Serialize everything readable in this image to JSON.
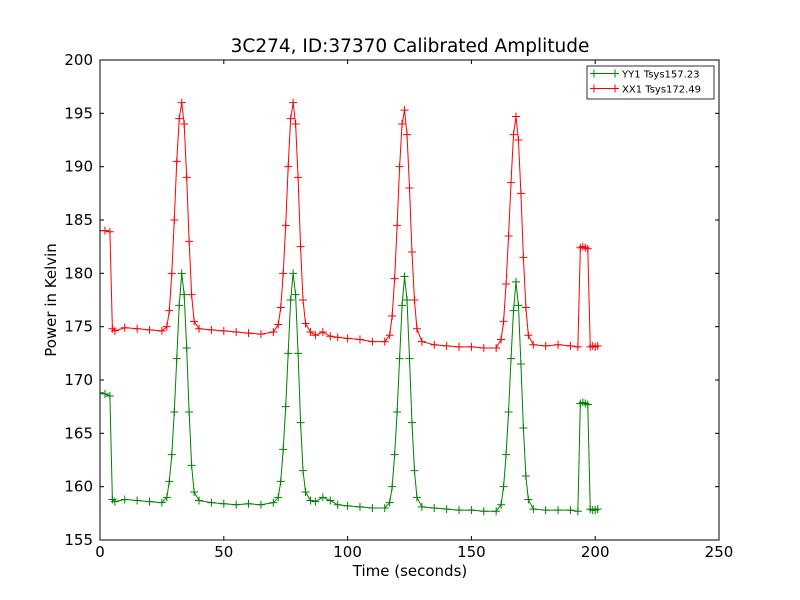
{
  "chart_data": {
    "type": "line",
    "title": "3C274, ID:37370 Calibrated Amplitude",
    "xlabel": "Time (seconds)",
    "ylabel": "Power in Kelvin",
    "xlim": [
      0,
      250
    ],
    "ylim": [
      155,
      200
    ],
    "xticks": [
      0,
      50,
      100,
      150,
      200,
      250
    ],
    "yticks": [
      155,
      160,
      165,
      170,
      175,
      180,
      185,
      190,
      195,
      200
    ],
    "grid": false,
    "legend_position": "top-right",
    "marker": "plus",
    "series": [
      {
        "name": "YY1 Tsys157.23",
        "color": "#008000",
        "x": [
          0,
          2,
          4,
          5,
          6,
          10,
          15,
          20,
          25,
          27,
          28,
          29,
          30,
          31,
          32,
          33,
          34,
          35,
          36,
          37,
          38,
          40,
          45,
          50,
          55,
          60,
          65,
          70,
          72,
          73,
          74,
          75,
          76,
          77,
          78,
          79,
          80,
          81,
          82,
          83,
          85,
          87,
          90,
          93,
          96,
          100,
          105,
          110,
          115,
          117,
          118,
          119,
          120,
          121,
          122,
          123,
          124,
          125,
          126,
          127,
          128,
          130,
          135,
          140,
          145,
          150,
          155,
          160,
          162,
          163,
          164,
          165,
          166,
          167,
          168,
          169,
          170,
          171,
          172,
          173,
          175,
          180,
          185,
          190,
          193,
          194,
          195,
          196,
          197,
          198,
          199,
          200,
          201
        ],
        "y": [
          168.8,
          168.7,
          168.5,
          158.8,
          158.6,
          158.8,
          158.7,
          158.6,
          158.5,
          159.0,
          160.5,
          163.0,
          167.0,
          172.0,
          177.0,
          180.0,
          178.0,
          173.0,
          167.0,
          162.0,
          159.5,
          158.7,
          158.5,
          158.4,
          158.3,
          158.4,
          158.3,
          158.5,
          159.0,
          160.5,
          163.5,
          167.5,
          172.5,
          177.5,
          180.0,
          178.0,
          172.5,
          166.0,
          161.5,
          159.5,
          158.7,
          158.6,
          159.0,
          158.7,
          158.3,
          158.2,
          158.1,
          158.0,
          158.0,
          158.5,
          160.0,
          163.0,
          167.0,
          172.0,
          177.0,
          179.7,
          177.5,
          172.0,
          166.0,
          161.5,
          159.0,
          158.1,
          158.0,
          157.9,
          157.8,
          157.8,
          157.7,
          157.7,
          158.3,
          160.0,
          163.0,
          167.0,
          172.0,
          176.5,
          179.2,
          177.0,
          171.5,
          165.5,
          161.0,
          158.8,
          157.9,
          157.8,
          157.8,
          157.8,
          157.7,
          167.8,
          167.9,
          167.8,
          167.7,
          157.9,
          157.8,
          157.8,
          157.9
        ]
      },
      {
        "name": "XX1 Tsys172.49",
        "color": "#ff0000",
        "x": [
          0,
          2,
          4,
          5,
          6,
          10,
          15,
          20,
          25,
          27,
          28,
          29,
          30,
          31,
          32,
          33,
          34,
          35,
          36,
          37,
          38,
          40,
          45,
          50,
          55,
          60,
          65,
          70,
          72,
          73,
          74,
          75,
          76,
          77,
          78,
          79,
          80,
          81,
          82,
          83,
          85,
          87,
          90,
          93,
          96,
          100,
          105,
          110,
          115,
          117,
          118,
          119,
          120,
          121,
          122,
          123,
          124,
          125,
          126,
          127,
          128,
          130,
          135,
          140,
          145,
          150,
          155,
          160,
          162,
          163,
          164,
          165,
          166,
          167,
          168,
          169,
          170,
          171,
          172,
          173,
          175,
          180,
          185,
          190,
          193,
          194,
          195,
          196,
          197,
          198,
          199,
          200,
          201
        ],
        "y": [
          184.0,
          184.0,
          183.9,
          174.8,
          174.6,
          174.9,
          174.8,
          174.7,
          174.6,
          175.0,
          176.5,
          180.0,
          185.0,
          190.5,
          194.5,
          196.0,
          194.0,
          189.0,
          183.0,
          178.0,
          175.5,
          174.8,
          174.7,
          174.6,
          174.5,
          174.4,
          174.3,
          174.5,
          175.2,
          176.8,
          180.0,
          184.5,
          190.0,
          194.5,
          196.0,
          194.0,
          189.0,
          182.5,
          177.5,
          175.3,
          174.5,
          174.2,
          174.5,
          174.1,
          174.0,
          173.9,
          173.8,
          173.6,
          173.6,
          174.2,
          176.0,
          179.5,
          184.5,
          190.0,
          194.0,
          195.3,
          193.0,
          188.0,
          182.0,
          177.5,
          174.8,
          173.6,
          173.3,
          173.2,
          173.1,
          173.1,
          173.0,
          173.0,
          173.8,
          175.5,
          179.0,
          183.5,
          188.5,
          193.0,
          194.7,
          192.5,
          187.5,
          181.5,
          176.8,
          174.2,
          173.3,
          173.2,
          173.3,
          173.2,
          173.1,
          182.4,
          182.5,
          182.4,
          182.3,
          173.1,
          173.2,
          173.1,
          173.2
        ]
      }
    ]
  }
}
